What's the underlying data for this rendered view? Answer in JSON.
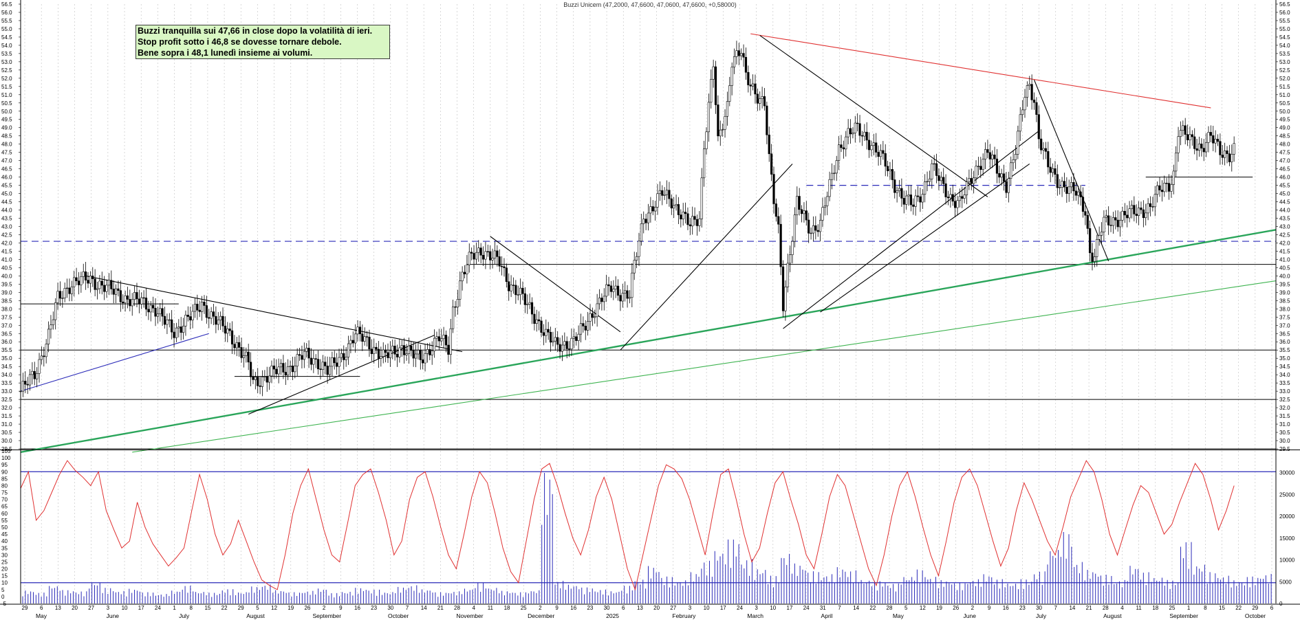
{
  "chart_data": [
    {
      "type": "candlestick",
      "title": "Buzzi Unicem (47,2000, 47,6600, 47,0600, 47,6600, +0,58000)",
      "price_axis": {
        "ylim": [
          29.5,
          56.5
        ],
        "step": 0.5,
        "tick_labels": [
          "29.5",
          "30.0",
          "30.5",
          "31.0",
          "31.5",
          "32.0",
          "32.5",
          "33.0",
          "33.5",
          "34.0",
          "34.5",
          "35.0",
          "35.5",
          "36.0",
          "36.5",
          "37.0",
          "37.5",
          "38.0",
          "38.5",
          "39.0",
          "39.5",
          "40.0",
          "40.5",
          "41.0",
          "41.5",
          "42.0",
          "42.5",
          "43.0",
          "43.5",
          "44.0",
          "44.5",
          "45.0",
          "45.5",
          "46.0",
          "46.5",
          "47.0",
          "47.5",
          "48.0",
          "48.5",
          "49.0",
          "49.5",
          "50.0",
          "50.5",
          "51.0",
          "51.5",
          "52.0",
          "52.5",
          "53.0",
          "53.5",
          "54.0",
          "54.5",
          "55.0",
          "55.5",
          "56.0",
          "56.5"
        ]
      },
      "month_labels": [
        "May",
        "June",
        "July",
        "August",
        "September",
        "October",
        "November",
        "December",
        "2025",
        "February",
        "March",
        "April",
        "May",
        "June",
        "July",
        "August",
        "September",
        "October"
      ],
      "day_labels": [
        "29",
        "6",
        "13",
        "20",
        "27",
        "3",
        "10",
        "17",
        "24",
        "1",
        "8",
        "15",
        "22",
        "29",
        "5",
        "12",
        "19",
        "26",
        "2",
        "9",
        "16",
        "23",
        "30",
        "7",
        "14",
        "21",
        "28",
        "4",
        "11",
        "18",
        "25",
        "2",
        "9",
        "16",
        "23",
        "30",
        "6",
        "13",
        "20",
        "27",
        "3",
        "10",
        "17",
        "24",
        "3",
        "10",
        "17",
        "24",
        "31",
        "7",
        "14",
        "22",
        "28",
        "5",
        "12",
        "19",
        "26",
        "2",
        "9",
        "16",
        "23",
        "30",
        "7",
        "14",
        "21",
        "28",
        "4",
        "11",
        "18",
        "25",
        "1",
        "8",
        "15",
        "22",
        "29",
        "6"
      ],
      "price_path": [
        [
          0,
          33.0
        ],
        [
          6,
          34.0
        ],
        [
          12,
          36.4
        ],
        [
          16,
          38.6
        ],
        [
          22,
          39.6
        ],
        [
          30,
          39.8
        ],
        [
          38,
          39.2
        ],
        [
          46,
          38.6
        ],
        [
          52,
          38.4
        ],
        [
          58,
          38.0
        ],
        [
          62,
          37.2
        ],
        [
          66,
          36.6
        ],
        [
          70,
          37.2
        ],
        [
          74,
          37.6
        ],
        [
          78,
          38.3
        ],
        [
          82,
          37.6
        ],
        [
          86,
          37.0
        ],
        [
          90,
          36.5
        ],
        [
          94,
          35.6
        ],
        [
          98,
          34.6
        ],
        [
          100,
          33.5
        ],
        [
          104,
          33.8
        ],
        [
          110,
          34.2
        ],
        [
          116,
          34.5
        ],
        [
          122,
          35.2
        ],
        [
          128,
          34.8
        ],
        [
          132,
          34.2
        ],
        [
          136,
          34.8
        ],
        [
          140,
          35.5
        ],
        [
          144,
          36.4
        ],
        [
          148,
          36.2
        ],
        [
          152,
          35.6
        ],
        [
          156,
          35.0
        ],
        [
          160,
          35.4
        ],
        [
          164,
          35.7
        ],
        [
          168,
          35.2
        ],
        [
          172,
          35.0
        ],
        [
          176,
          35.6
        ],
        [
          180,
          36.2
        ],
        [
          184,
          35.6
        ],
        [
          186,
          38.0
        ],
        [
          190,
          40.0
        ],
        [
          194,
          41.2
        ],
        [
          198,
          41.6
        ],
        [
          202,
          41.2
        ],
        [
          206,
          40.8
        ],
        [
          210,
          39.6
        ],
        [
          214,
          39.0
        ],
        [
          218,
          38.2
        ],
        [
          222,
          37.4
        ],
        [
          226,
          36.4
        ],
        [
          230,
          35.8
        ],
        [
          234,
          35.9
        ],
        [
          238,
          36.0
        ],
        [
          242,
          36.8
        ],
        [
          246,
          37.8
        ],
        [
          250,
          38.6
        ],
        [
          254,
          39.3
        ],
        [
          258,
          39.0
        ],
        [
          262,
          38.8
        ],
        [
          264,
          40.6
        ],
        [
          268,
          43.6
        ],
        [
          272,
          44.2
        ],
        [
          276,
          45.0
        ],
        [
          280,
          44.6
        ],
        [
          284,
          43.8
        ],
        [
          288,
          43.0
        ],
        [
          292,
          43.6
        ],
        [
          294,
          48.0
        ],
        [
          298,
          52.8
        ],
        [
          300,
          48.0
        ],
        [
          304,
          50.4
        ],
        [
          306,
          53.2
        ],
        [
          310,
          53.6
        ],
        [
          312,
          52.0
        ],
        [
          316,
          51.2
        ],
        [
          320,
          50.5
        ],
        [
          322,
          47.0
        ],
        [
          324,
          44.5
        ],
        [
          326,
          42.8
        ],
        [
          328,
          38.4
        ],
        [
          330,
          40.6
        ],
        [
          332,
          42.4
        ],
        [
          334,
          44.4
        ],
        [
          336,
          43.8
        ],
        [
          340,
          42.8
        ],
        [
          344,
          43.2
        ],
        [
          348,
          45.4
        ],
        [
          352,
          47.8
        ],
        [
          356,
          48.6
        ],
        [
          360,
          48.9
        ],
        [
          364,
          48.4
        ],
        [
          368,
          47.6
        ],
        [
          372,
          46.8
        ],
        [
          376,
          45.6
        ],
        [
          380,
          44.6
        ],
        [
          384,
          44.3
        ],
        [
          388,
          45.2
        ],
        [
          392,
          46.6
        ],
        [
          396,
          45.6
        ],
        [
          400,
          44.8
        ],
        [
          404,
          44.4
        ],
        [
          408,
          45.6
        ],
        [
          412,
          46.8
        ],
        [
          416,
          47.5
        ],
        [
          420,
          46.4
        ],
        [
          424,
          45.6
        ],
        [
          428,
          47.6
        ],
        [
          432,
          51.0
        ],
        [
          434,
          51.6
        ],
        [
          436,
          50.8
        ],
        [
          438,
          48.4
        ],
        [
          442,
          46.6
        ],
        [
          446,
          45.8
        ],
        [
          450,
          45.4
        ],
        [
          454,
          45.0
        ],
        [
          458,
          44.0
        ],
        [
          460,
          41.5
        ],
        [
          462,
          41.2
        ],
        [
          464,
          42.4
        ],
        [
          466,
          43.2
        ],
        [
          470,
          43.4
        ],
        [
          474,
          43.6
        ],
        [
          478,
          43.8
        ],
        [
          482,
          44.0
        ],
        [
          486,
          44.2
        ],
        [
          490,
          45.2
        ],
        [
          494,
          45.6
        ],
        [
          496,
          46.2
        ],
        [
          498,
          48.8
        ],
        [
          500,
          48.6
        ],
        [
          504,
          48.2
        ],
        [
          508,
          47.8
        ],
        [
          512,
          48.4
        ],
        [
          516,
          47.6
        ],
        [
          520,
          47.4
        ],
        [
          522,
          47.66
        ]
      ],
      "trend_lines": [
        {
          "color": "#e03030",
          "from": [
            314,
            54.7
          ],
          "to": [
            512,
            50.2
          ]
        },
        {
          "color": "#2aa55a",
          "from": [
            0,
            29.3
          ],
          "to": [
            540,
            42.8
          ]
        },
        {
          "color": "#3db34f",
          "from": [
            48,
            29.3
          ],
          "to": [
            540,
            39.7
          ]
        },
        {
          "color": "#2a2ab8",
          "from": [
            0,
            33.0
          ],
          "to": [
            81,
            36.5
          ]
        },
        {
          "color": "#000000",
          "from": [
            28,
            40.0
          ],
          "to": [
            190,
            35.4
          ]
        },
        {
          "color": "#000000",
          "from": [
            98,
            31.6
          ],
          "to": [
            178,
            36.4
          ]
        },
        {
          "color": "#000000",
          "from": [
            202,
            42.4
          ],
          "to": [
            258,
            36.6
          ]
        },
        {
          "color": "#000000",
          "from": [
            258,
            35.5
          ],
          "to": [
            332,
            46.8
          ]
        },
        {
          "color": "#000000",
          "from": [
            318,
            54.6
          ],
          "to": [
            416,
            44.8
          ]
        },
        {
          "color": "#000000",
          "from": [
            328,
            36.8
          ],
          "to": [
            438,
            48.8
          ]
        },
        {
          "color": "#000000",
          "from": [
            344,
            37.8
          ],
          "to": [
            434,
            46.8
          ]
        },
        {
          "color": "#000000",
          "from": [
            436,
            51.9
          ],
          "to": [
            468,
            40.9
          ]
        }
      ],
      "horizontal_levels": [
        {
          "value": 42.1,
          "style": "dashed",
          "color": "#2a2ab8",
          "from": 0,
          "to": 540
        },
        {
          "value": 45.5,
          "style": "dashed",
          "color": "#2a2ab8",
          "from": 338,
          "to": 458
        },
        {
          "value": 40.7,
          "style": "solid",
          "color": "#000000",
          "from": 192,
          "to": 540
        },
        {
          "value": 35.5,
          "style": "solid",
          "color": "#000000",
          "from": 0,
          "to": 540
        },
        {
          "value": 32.5,
          "style": "solid",
          "color": "#000000",
          "from": 0,
          "to": 540
        },
        {
          "value": 29.5,
          "style": "solid",
          "color": "#000000",
          "from": 0,
          "to": 540
        },
        {
          "value": 38.3,
          "style": "solid",
          "color": "#000000",
          "from": 0,
          "to": 68
        },
        {
          "value": 33.9,
          "style": "solid",
          "color": "#000000",
          "from": 92,
          "to": 146
        },
        {
          "value": 46.0,
          "style": "solid",
          "color": "#000000",
          "from": 484,
          "to": 530
        }
      ],
      "annotations": [
        "Buzzi tranquilla sui 47,66 in close dopo la volatilità di ieri.",
        "Stop profit sotto i 46,8 se dovesse tornare debole.",
        "Bene sopra i 48,1 lunedì insieme ai volumi."
      ],
      "colors": {
        "bull": "#ffffff",
        "bear": "#000000",
        "grid": "#bfbfbf",
        "note_fill": "#d9f7c4"
      }
    },
    {
      "type": "line",
      "panel": "oscillator",
      "ylim": [
        -5,
        105
      ],
      "tick_labels": [
        "105",
        "100",
        "95",
        "90",
        "85",
        "80",
        "75",
        "70",
        "65",
        "60",
        "55",
        "50",
        "45",
        "40",
        "35",
        "30",
        "25",
        "20",
        "15",
        "10",
        "5",
        "0",
        "-5"
      ],
      "levels": [
        90,
        10
      ],
      "series": [
        {
          "color": "#e03030",
          "values": [
            78,
            90,
            55,
            62,
            75,
            88,
            98,
            91,
            86,
            80,
            90,
            62,
            48,
            35,
            40,
            68,
            50,
            38,
            30,
            22,
            28,
            35,
            62,
            88,
            70,
            45,
            30,
            38,
            55,
            40,
            25,
            12,
            8,
            5,
            30,
            60,
            80,
            92,
            70,
            48,
            30,
            25,
            52,
            80,
            88,
            92,
            75,
            55,
            30,
            40,
            70,
            86,
            90,
            72,
            50,
            30,
            20,
            45,
            72,
            90,
            82,
            60,
            35,
            18,
            10,
            40,
            70,
            92,
            96,
            80,
            60,
            42,
            30,
            48,
            72,
            86,
            70,
            45,
            20,
            5,
            30,
            55,
            80,
            95,
            92,
            85,
            70,
            50,
            30,
            60,
            88,
            92,
            70,
            45,
            25,
            35,
            60,
            82,
            90,
            70,
            52,
            30,
            20,
            45,
            72,
            88,
            80,
            60,
            40,
            20,
            8,
            30,
            58,
            80,
            90,
            72,
            50,
            30,
            15,
            40,
            68,
            86,
            92,
            80,
            60,
            40,
            22,
            35,
            62,
            82,
            70,
            55,
            40,
            30,
            50,
            72,
            85,
            98,
            90,
            70,
            45,
            30,
            48,
            66,
            80,
            75,
            60,
            45,
            52,
            68,
            82,
            96,
            88,
            70,
            48,
            62,
            80
          ]
        }
      ]
    },
    {
      "type": "bar",
      "panel": "volume",
      "ylim": [
        0,
        35000
      ],
      "tick_labels": [
        "30000",
        "25000",
        "20000",
        "15000",
        "10000",
        "5000",
        "0"
      ],
      "series": [
        {
          "color": "#2a2ab8",
          "values": [
            3000,
            2500,
            4200,
            3100,
            2800,
            5000,
            3600,
            2900,
            3400,
            2600,
            2200,
            3000,
            4100,
            2800,
            2500,
            3300,
            2700,
            3900,
            4400,
            3100,
            2600,
            2900,
            3500,
            2400,
            2800,
            3600,
            3200,
            2700,
            3800,
            4200,
            3300,
            2600,
            2800,
            3500,
            4800,
            3700,
            2900,
            2600,
            3100,
            30000,
            5200,
            4400,
            3700,
            3200,
            2900,
            4100,
            5600,
            8600,
            6200,
            5400,
            7200,
            9800,
            12400,
            14800,
            10200,
            8200,
            6400,
            11600,
            9200,
            7400,
            6800,
            8400,
            7600,
            5600,
            5200,
            4600,
            6400,
            7800,
            6200,
            5400,
            4800,
            5600,
            6800,
            5600,
            4800,
            5600,
            7400,
            12800,
            16400,
            9600,
            7800,
            6600,
            5400,
            8800,
            7200,
            6200,
            5400,
            14200,
            9200,
            7200,
            6400,
            5400,
            6200,
            6800
          ]
        }
      ]
    }
  ]
}
